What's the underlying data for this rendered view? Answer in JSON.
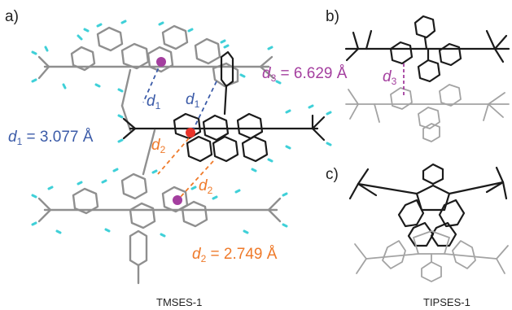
{
  "panels": {
    "a": {
      "letter": "a)",
      "caption": "TMSES-1",
      "labels": [
        {
          "symbol": "d",
          "sub": "1",
          "value": " = 3.077 Å"
        },
        {
          "symbol": "d",
          "sub": "2",
          "value": " = 2.749 Å"
        }
      ],
      "markers": [
        {
          "symbol": "d",
          "sub": "1"
        },
        {
          "symbol": "d",
          "sub": "1"
        },
        {
          "symbol": "d",
          "sub": "2"
        },
        {
          "symbol": "d",
          "sub": "2"
        }
      ]
    },
    "b": {
      "letter": "b)",
      "label": {
        "symbol": "d",
        "sub": "3",
        "value": " = 6.629 Å"
      },
      "marker": {
        "symbol": "d",
        "sub": "3"
      }
    },
    "c": {
      "letter": "c)",
      "caption": "TIPSES-1"
    }
  },
  "colors": {
    "d1": "#3b5ba8",
    "d2": "#ef7a2a",
    "d3": "#a43f9f",
    "hydrogen": "#3fd0d8",
    "centroid_upper": "#a43f9f",
    "centroid_middle": "#e8332a",
    "centroid_lower": "#a43f9f"
  }
}
